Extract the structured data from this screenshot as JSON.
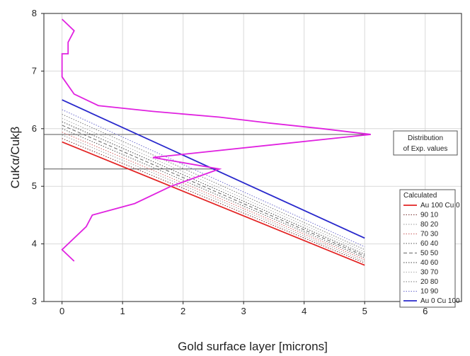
{
  "chart_data": {
    "type": "line",
    "title": "",
    "xlabel": "Gold surface layer [microns]",
    "ylabel": "CuKα/Cukβ",
    "xlim": [
      -0.3,
      6.6
    ],
    "ylim": [
      3,
      8
    ],
    "xticks": [
      "0",
      "1",
      "2",
      "3",
      "4",
      "5",
      "6"
    ],
    "yticks": [
      "3",
      "4",
      "5",
      "6",
      "7",
      "8"
    ],
    "grid": true,
    "legend": {
      "title": "Calculated",
      "position": "bottom-right"
    },
    "series": [
      {
        "name": "Au 100 Cu 0",
        "color": "#e32323",
        "dash": "solid",
        "x": [
          0,
          5
        ],
        "y": [
          5.77,
          3.63
        ]
      },
      {
        "name": "90 10",
        "color": "#7a3030",
        "dash": "dot",
        "x": [
          0,
          5
        ],
        "y": [
          5.83,
          3.67
        ]
      },
      {
        "name": "80 20",
        "color": "#999999",
        "dash": "dot",
        "x": [
          0,
          5
        ],
        "y": [
          5.89,
          3.7
        ]
      },
      {
        "name": "70 30",
        "color": "#cc6060",
        "dash": "dot",
        "x": [
          0,
          5
        ],
        "y": [
          5.94,
          3.73
        ]
      },
      {
        "name": "60 40",
        "color": "#555555",
        "dash": "dot",
        "x": [
          0,
          5
        ],
        "y": [
          6.0,
          3.76
        ]
      },
      {
        "name": "50 50",
        "color": "#666666",
        "dash": "dash",
        "x": [
          0,
          5
        ],
        "y": [
          6.06,
          3.79
        ]
      },
      {
        "name": "40 60",
        "color": "#444444",
        "dash": "dot",
        "x": [
          0,
          5
        ],
        "y": [
          6.12,
          3.82
        ]
      },
      {
        "name": "30 70",
        "color": "#aaaaaa",
        "dash": "dot",
        "x": [
          0,
          5
        ],
        "y": [
          6.18,
          3.86
        ]
      },
      {
        "name": "20 80",
        "color": "#777777",
        "dash": "dot",
        "x": [
          0,
          5
        ],
        "y": [
          6.25,
          3.9
        ]
      },
      {
        "name": "10 90",
        "color": "#6a6acc",
        "dash": "dot",
        "x": [
          0,
          5
        ],
        "y": [
          6.33,
          3.95
        ]
      },
      {
        "name": "Au 0 Cu 100",
        "color": "#2828cc",
        "dash": "solid",
        "x": [
          0,
          5
        ],
        "y": [
          6.5,
          4.1
        ]
      }
    ],
    "distribution": {
      "label_line1": "Distribution",
      "label_line2": "of Exp. values",
      "color": "#e022e0",
      "x": [
        0.0,
        0.2,
        0.1,
        0.1,
        0.0,
        0.0,
        0.0,
        0.2,
        0.6,
        1.5,
        2.6,
        3.4,
        4.3,
        5.1,
        1.5,
        2.6,
        1.8,
        1.2,
        0.5,
        0.4,
        0.0,
        0.2
      ],
      "y": [
        7.9,
        7.7,
        7.5,
        7.3,
        7.3,
        7.1,
        6.9,
        6.6,
        6.4,
        6.3,
        6.2,
        6.1,
        6.0,
        5.9,
        5.5,
        5.3,
        5.0,
        4.7,
        4.5,
        4.3,
        3.9,
        3.7
      ]
    },
    "reference_lines": [
      {
        "y": 5.9,
        "x0": -0.3,
        "x1": 5.1
      },
      {
        "y": 5.3,
        "x0": -0.3,
        "x1": 2.6
      }
    ]
  }
}
